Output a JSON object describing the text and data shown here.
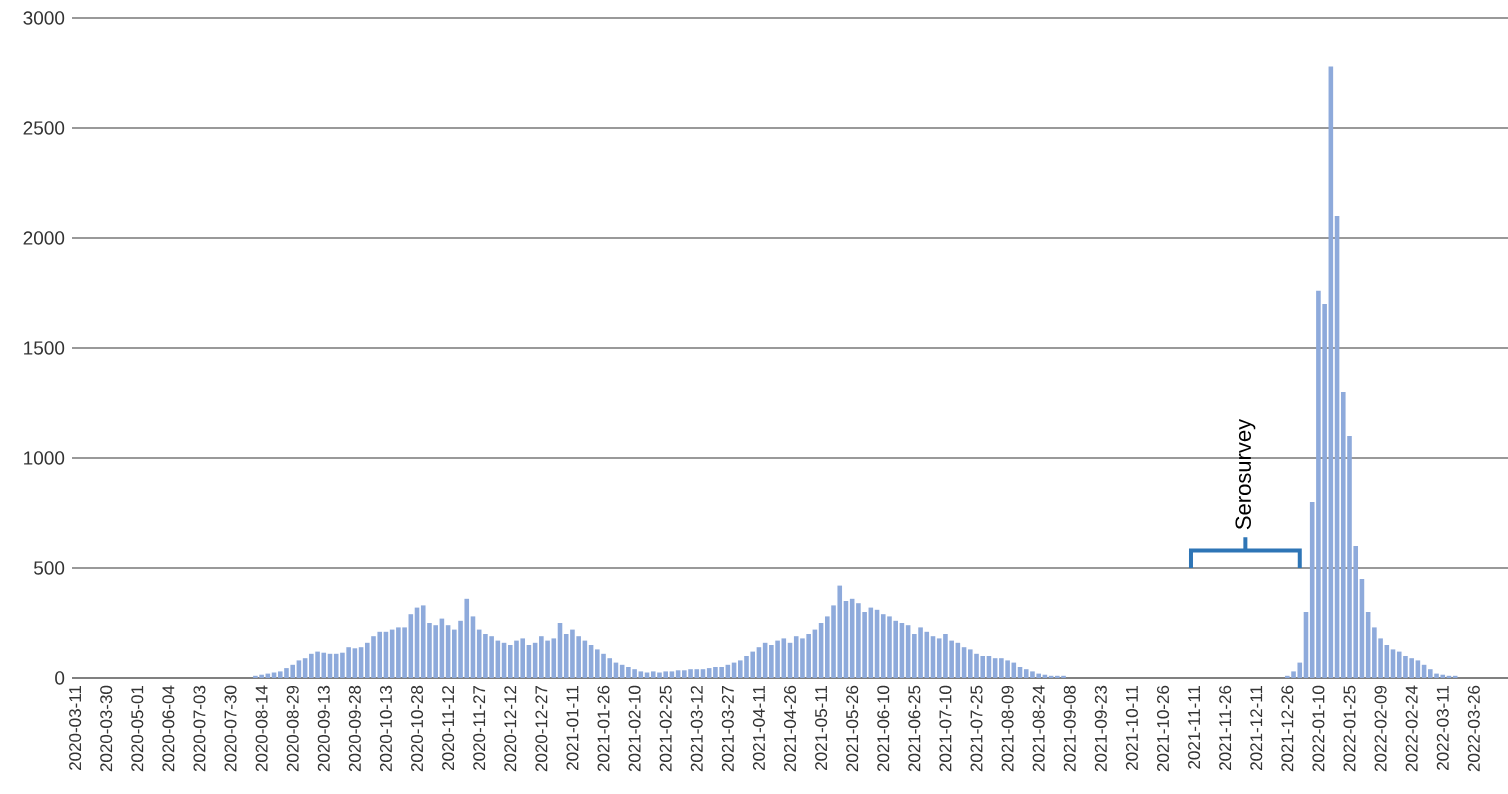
{
  "chart_data": {
    "type": "bar",
    "color": "#8eaadb",
    "grid": "y",
    "ylim": [
      0,
      3000
    ],
    "yticks": [
      0,
      500,
      1000,
      1500,
      2000,
      2500,
      3000
    ],
    "annotations": [
      "Serosurvey"
    ],
    "categories": [
      "2020-03-11",
      null,
      null,
      null,
      null,
      "2020-03-30",
      null,
      null,
      null,
      null,
      "2020-05-01",
      null,
      null,
      null,
      null,
      "2020-06-04",
      null,
      null,
      null,
      null,
      "2020-07-03",
      null,
      null,
      null,
      null,
      "2020-07-30",
      null,
      null,
      null,
      null,
      "2020-08-14",
      null,
      null,
      null,
      null,
      "2020-08-29",
      null,
      null,
      null,
      null,
      "2020-09-13",
      null,
      null,
      null,
      null,
      "2020-09-28",
      null,
      null,
      null,
      null,
      "2020-10-13",
      null,
      null,
      null,
      null,
      "2020-10-28",
      null,
      null,
      null,
      null,
      "2020-11-12",
      null,
      null,
      null,
      null,
      "2020-11-27",
      null,
      null,
      null,
      null,
      "2020-12-12",
      null,
      null,
      null,
      null,
      "2020-12-27",
      null,
      null,
      null,
      null,
      "2021-01-11",
      null,
      null,
      null,
      null,
      "2021-01-26",
      null,
      null,
      null,
      null,
      "2021-02-10",
      null,
      null,
      null,
      null,
      "2021-02-25",
      null,
      null,
      null,
      null,
      "2021-03-12",
      null,
      null,
      null,
      null,
      "2021-03-27",
      null,
      null,
      null,
      null,
      "2021-04-11",
      null,
      null,
      null,
      null,
      "2021-04-26",
      null,
      null,
      null,
      null,
      "2021-05-11",
      null,
      null,
      null,
      null,
      "2021-05-26",
      null,
      null,
      null,
      null,
      "2021-06-10",
      null,
      null,
      null,
      null,
      "2021-06-25",
      null,
      null,
      null,
      null,
      "2021-07-10",
      null,
      null,
      null,
      null,
      "2021-07-25",
      null,
      null,
      null,
      null,
      "2021-08-09",
      null,
      null,
      null,
      null,
      "2021-08-24",
      null,
      null,
      null,
      null,
      "2021-09-08",
      null,
      null,
      null,
      null,
      "2021-09-23",
      null,
      null,
      null,
      null,
      "2021-10-11",
      null,
      null,
      null,
      null,
      "2021-10-26",
      null,
      null,
      null,
      null,
      "2021-11-11",
      null,
      null,
      null,
      null,
      "2021-11-26",
      null,
      null,
      null,
      null,
      "2021-12-11",
      null,
      null,
      null,
      null,
      "2021-12-26",
      null,
      null,
      null,
      null,
      "2022-01-10",
      null,
      null,
      null,
      null,
      "2022-01-25",
      null,
      null,
      null,
      null,
      "2022-02-09",
      null,
      null,
      null,
      null,
      "2022-02-24",
      null,
      null,
      null,
      null,
      "2022-03-11",
      null,
      null,
      null,
      null,
      "2022-03-26",
      null,
      null,
      null,
      null,
      null
    ],
    "values": [
      0,
      0,
      0,
      0,
      0,
      0,
      0,
      0,
      0,
      0,
      0,
      0,
      0,
      0,
      0,
      0,
      0,
      0,
      0,
      0,
      0,
      0,
      0,
      0,
      0,
      0,
      0,
      0,
      0,
      10,
      15,
      20,
      25,
      30,
      45,
      60,
      80,
      90,
      110,
      120,
      115,
      110,
      110,
      115,
      140,
      135,
      140,
      160,
      190,
      210,
      210,
      220,
      230,
      230,
      290,
      320,
      330,
      250,
      240,
      270,
      240,
      220,
      260,
      360,
      280,
      220,
      200,
      190,
      170,
      160,
      150,
      170,
      180,
      150,
      160,
      190,
      170,
      180,
      250,
      200,
      220,
      190,
      170,
      150,
      130,
      110,
      90,
      70,
      60,
      50,
      40,
      30,
      25,
      30,
      25,
      30,
      30,
      35,
      35,
      40,
      40,
      40,
      45,
      50,
      50,
      60,
      70,
      80,
      100,
      120,
      140,
      160,
      150,
      170,
      180,
      160,
      190,
      180,
      200,
      220,
      250,
      280,
      330,
      420,
      350,
      360,
      340,
      300,
      320,
      310,
      290,
      280,
      260,
      250,
      240,
      200,
      230,
      210,
      190,
      180,
      200,
      170,
      160,
      140,
      130,
      110,
      100,
      100,
      90,
      90,
      80,
      70,
      50,
      40,
      30,
      20,
      15,
      10,
      10,
      10,
      0,
      0,
      0,
      0,
      0,
      0,
      0,
      0,
      0,
      0,
      0,
      0,
      0,
      0,
      0,
      0,
      0,
      0,
      0,
      0,
      0,
      0,
      0,
      0,
      0,
      0,
      0,
      0,
      0,
      0,
      0,
      0,
      0,
      0,
      0,
      10,
      30,
      70,
      300,
      800,
      1760,
      1700,
      2780,
      2100,
      1300,
      1100,
      600,
      450,
      300,
      230,
      180,
      150,
      130,
      120,
      100,
      90,
      80,
      60,
      40,
      20,
      15,
      10,
      10,
      0,
      0,
      0,
      0,
      0,
      0,
      0,
      0
    ]
  }
}
